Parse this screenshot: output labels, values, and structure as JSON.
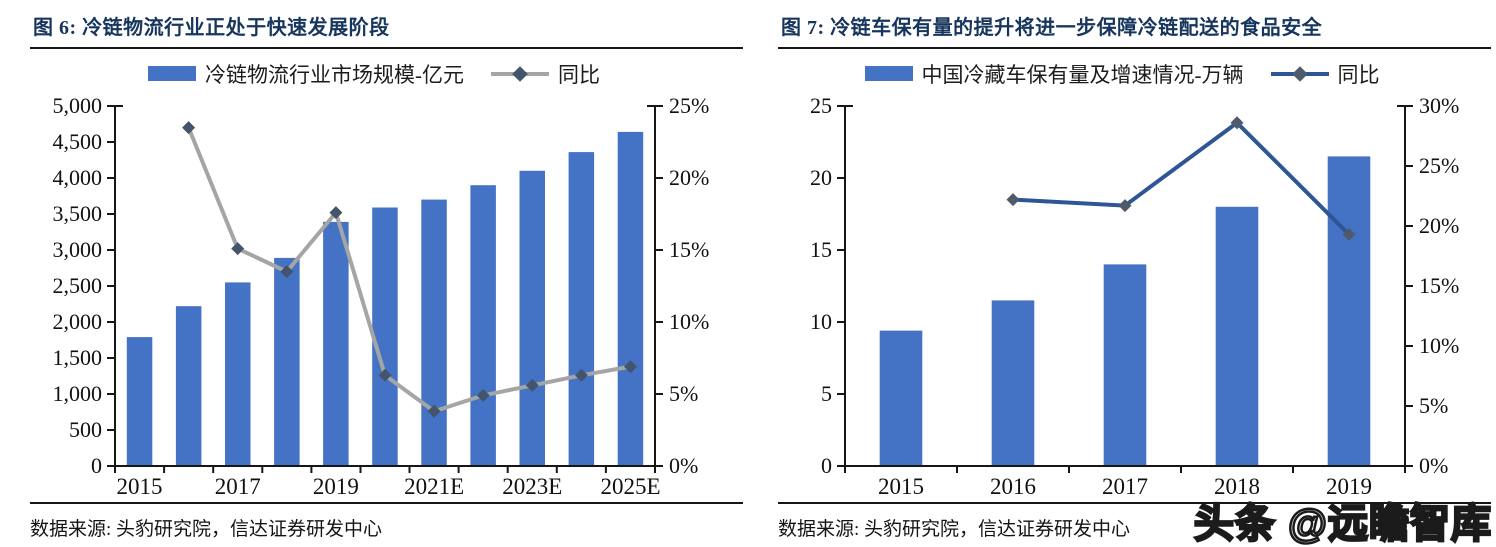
{
  "page": {
    "watermark": "头条 @远瞻智库"
  },
  "panels": [
    {
      "source": "数据来源: 头豹研究院，信达证券研发中心"
    },
    {
      "source": "数据来源: 头豹研究院，信达证券研发中心"
    }
  ],
  "chart_data": [
    {
      "type": "bar+line",
      "title": "图 6: 冷链物流行业正处于快速发展阶段",
      "categories": [
        "2015",
        "2016",
        "2017",
        "2018",
        "2019",
        "2020",
        "2021E",
        "2022E",
        "2023E",
        "2024E",
        "2025E"
      ],
      "series": [
        {
          "name": "冷链物流行业市场规模-亿元",
          "type": "bar",
          "axis": "left",
          "values": [
            1790,
            2220,
            2550,
            2890,
            3390,
            3590,
            3700,
            3900,
            4100,
            4360,
            4640
          ]
        },
        {
          "name": "同比",
          "type": "line",
          "axis": "right",
          "values": [
            null,
            23.5,
            15.1,
            13.5,
            17.6,
            6.3,
            3.8,
            4.9,
            5.6,
            6.3,
            6.9
          ]
        }
      ],
      "left_axis": {
        "min": 0,
        "max": 5000,
        "step": 500,
        "tick_labels": [
          "0",
          "500",
          "1,000",
          "1,500",
          "2,000",
          "2,500",
          "3,000",
          "3,500",
          "4,000",
          "4,500",
          "5,000"
        ]
      },
      "right_axis": {
        "min": 0,
        "max": 25,
        "step": 5,
        "tick_labels": [
          "0%",
          "5%",
          "10%",
          "15%",
          "20%",
          "25%"
        ]
      },
      "x_tick_labels": [
        "2015",
        "2017",
        "2019",
        "2021E",
        "2023E",
        "2025E"
      ],
      "x_label_every": 2,
      "legend_position": "top",
      "grid": false,
      "colors": {
        "bar": "#4472C4",
        "line": "#A5A5A5",
        "marker": "#44546A",
        "title": "#17365D"
      }
    },
    {
      "type": "bar+line",
      "title": "图 7: 冷链车保有量的提升将进一步保障冷链配送的食品安全",
      "categories": [
        "2015",
        "2016",
        "2017",
        "2018",
        "2019"
      ],
      "series": [
        {
          "name": "中国冷藏车保有量及增速情况-万辆",
          "type": "bar",
          "axis": "left",
          "values": [
            9.4,
            11.5,
            14.0,
            18.0,
            21.5
          ]
        },
        {
          "name": "同比",
          "type": "line",
          "axis": "right",
          "values": [
            null,
            22.2,
            21.7,
            28.6,
            19.3
          ]
        }
      ],
      "left_axis": {
        "min": 0,
        "max": 25,
        "step": 5,
        "tick_labels": [
          "0",
          "5",
          "10",
          "15",
          "20",
          "25"
        ]
      },
      "right_axis": {
        "min": 0,
        "max": 30,
        "step": 5,
        "tick_labels": [
          "0%",
          "5%",
          "10%",
          "15%",
          "20%",
          "25%",
          "30%"
        ]
      },
      "x_tick_labels": [
        "2015",
        "2016",
        "2017",
        "2018",
        "2019"
      ],
      "x_label_every": 1,
      "legend_position": "top",
      "grid": false,
      "colors": {
        "bar": "#4472C4",
        "line": "#2E5596",
        "marker": "#4F5A6B",
        "title": "#17365D"
      }
    }
  ]
}
